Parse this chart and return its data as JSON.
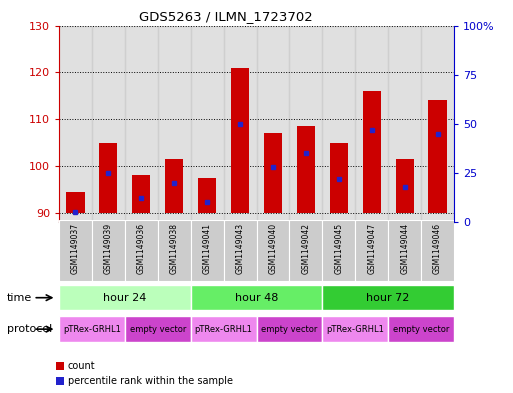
{
  "title": "GDS5263 / ILMN_1723702",
  "samples": [
    "GSM1149037",
    "GSM1149039",
    "GSM1149036",
    "GSM1149038",
    "GSM1149041",
    "GSM1149043",
    "GSM1149040",
    "GSM1149042",
    "GSM1149045",
    "GSM1149047",
    "GSM1149044",
    "GSM1149046"
  ],
  "count_values": [
    94.5,
    105.0,
    98.0,
    101.5,
    97.5,
    121.0,
    107.0,
    108.5,
    105.0,
    116.0,
    101.5,
    114.0
  ],
  "percentile_values": [
    5.0,
    25.0,
    12.0,
    20.0,
    10.0,
    50.0,
    28.0,
    35.0,
    22.0,
    47.0,
    18.0,
    45.0
  ],
  "baseline": 90,
  "ylim_left": [
    88,
    130
  ],
  "ylim_right": [
    0,
    100
  ],
  "yticks_left": [
    90,
    100,
    110,
    120,
    130
  ],
  "yticks_right": [
    0,
    25,
    50,
    75,
    100
  ],
  "ytick_labels_right": [
    "0",
    "25",
    "50",
    "75",
    "100%"
  ],
  "bar_color": "#cc0000",
  "percentile_color": "#2222cc",
  "time_colors": [
    "#bbffbb",
    "#66ee66",
    "#33cc33"
  ],
  "protocol_colors": [
    "#ee88ee",
    "#cc44cc"
  ],
  "time_groups": [
    {
      "label": "hour 24",
      "start": 0,
      "end": 4
    },
    {
      "label": "hour 48",
      "start": 4,
      "end": 8
    },
    {
      "label": "hour 72",
      "start": 8,
      "end": 12
    }
  ],
  "protocol_groups": [
    {
      "label": "pTRex-GRHL1",
      "start": 0,
      "end": 2,
      "color_idx": 0
    },
    {
      "label": "empty vector",
      "start": 2,
      "end": 4,
      "color_idx": 1
    },
    {
      "label": "pTRex-GRHL1",
      "start": 4,
      "end": 6,
      "color_idx": 0
    },
    {
      "label": "empty vector",
      "start": 6,
      "end": 8,
      "color_idx": 1
    },
    {
      "label": "pTRex-GRHL1",
      "start": 8,
      "end": 10,
      "color_idx": 0
    },
    {
      "label": "empty vector",
      "start": 10,
      "end": 12,
      "color_idx": 1
    }
  ],
  "bar_width": 0.55,
  "background_color": "#ffffff",
  "left_axis_color": "#cc0000",
  "right_axis_color": "#0000cc",
  "sample_bg_color": "#cccccc"
}
